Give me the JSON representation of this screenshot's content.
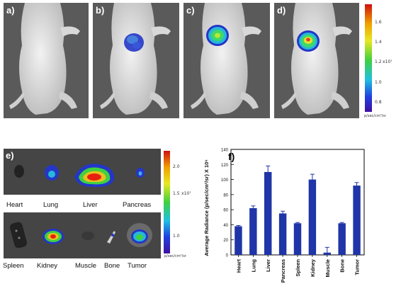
{
  "panels_top": [
    {
      "label": "a)",
      "signal": "none"
    },
    {
      "label": "b)",
      "signal": "weak"
    },
    {
      "label": "c)",
      "signal": "medium"
    },
    {
      "label": "d)",
      "signal": "strong"
    }
  ],
  "colorbar_top": {
    "ticks": [
      "1.6",
      "1.4",
      "1.2",
      "1.0",
      "0.8"
    ],
    "exponent": "x10⁷",
    "unit": "p/sec/cm²/sr"
  },
  "panel_e": {
    "label": "e)",
    "row1": [
      "Heart",
      "Lung",
      "Liver",
      "Pancreas"
    ],
    "row2": [
      "Spleen",
      "Kidney",
      "Muscle",
      "Bone",
      "Tumor"
    ],
    "colorbar": {
      "ticks": [
        "2.0",
        "1.5",
        "1.0"
      ],
      "exponent": "x10⁷",
      "unit": "p/sec/cm²/sr"
    }
  },
  "panel_f": {
    "label": "f)"
  },
  "chart_data": {
    "type": "bar",
    "categories": [
      "Heart",
      "Lung",
      "Liver",
      "Pancreas",
      "Spleen",
      "Kidney",
      "Muscle",
      "Bone",
      "Tumor"
    ],
    "values": [
      38,
      62,
      110,
      55,
      42,
      100,
      3,
      42,
      92
    ],
    "errors": [
      1,
      3,
      8,
      3,
      1,
      7,
      7,
      1,
      4
    ],
    "ylabel": "Average Radiance (p/sec/cm²/sr) X 10⁶",
    "ylim": [
      0,
      140
    ],
    "yticks": [
      0,
      20,
      40,
      60,
      80,
      100,
      120,
      140
    ],
    "bar_color": "#1f35a8"
  }
}
